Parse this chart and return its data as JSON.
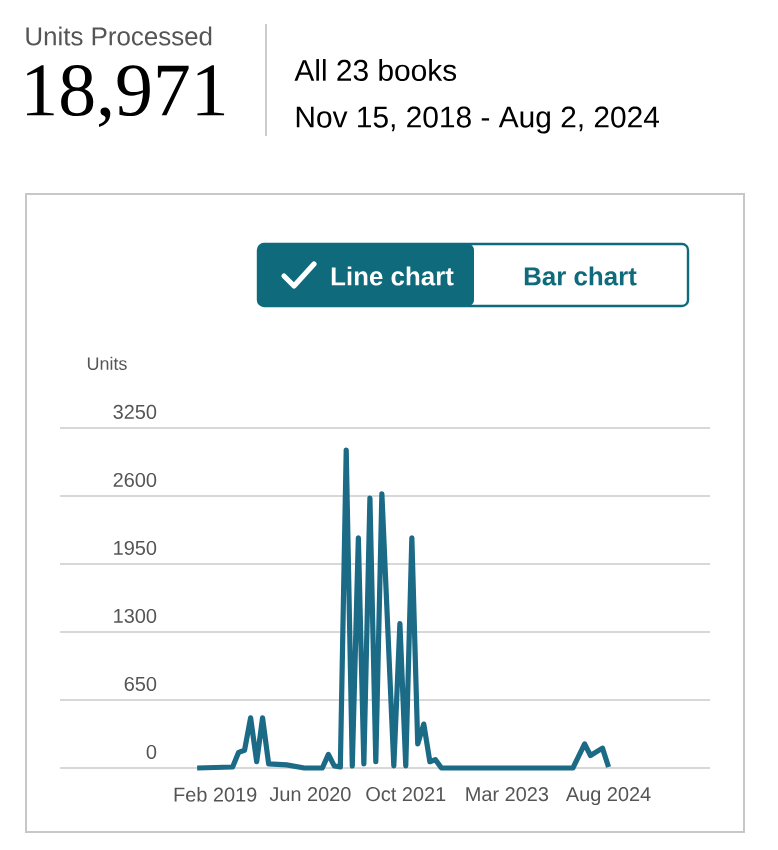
{
  "chart_data": {
    "type": "line",
    "title": "Units Processed",
    "subtitle": "18,971",
    "ylabel": "Units",
    "annotations": [
      "All 23 books",
      "Nov 15, 2018 - Aug 2, 2024",
      "Line chart",
      "Bar chart"
    ],
    "x": [
      "2018-11",
      "2019-05",
      "2019-06",
      "2019-07",
      "2019-08",
      "2019-09",
      "2019-10",
      "2019-11",
      "2020-02",
      "2020-05",
      "2020-08",
      "2020-09",
      "2020-10",
      "2020-11",
      "2020-12",
      "2021-01",
      "2021-02",
      "2021-03",
      "2021-04",
      "2021-05",
      "2021-06",
      "2021-08",
      "2021-09",
      "2021-10",
      "2021-11",
      "2021-12",
      "2022-01",
      "2022-02",
      "2022-03",
      "2022-04",
      "2024-02",
      "2024-04",
      "2024-05",
      "2024-07",
      "2024-08"
    ],
    "series": [
      {
        "color": "#1b6a86",
        "values": [
          0,
          10,
          150,
          170,
          480,
          60,
          480,
          40,
          30,
          0,
          0,
          130,
          20,
          10,
          3040,
          20,
          2200,
          40,
          2580,
          60,
          2620,
          20,
          1380,
          20,
          2200,
          230,
          420,
          60,
          80,
          0,
          0,
          230,
          120,
          190,
          10
        ]
      }
    ],
    "xlim": [
      "2016-12",
      "2026-01"
    ],
    "xticks": [
      {
        "value": "2019-02",
        "label": "Feb 2019"
      },
      {
        "value": "2020-06",
        "label": "Jun 2020"
      },
      {
        "value": "2021-10",
        "label": "Oct 2021"
      },
      {
        "value": "2023-03",
        "label": "Mar 2023"
      },
      {
        "value": "2024-08",
        "label": "Aug 2024"
      }
    ],
    "ylim": [
      0,
      3250
    ],
    "yticks": [
      0,
      650,
      1300,
      1950,
      2600,
      3250
    ],
    "grid": "y",
    "marker": "none",
    "line_style": "solid"
  }
}
